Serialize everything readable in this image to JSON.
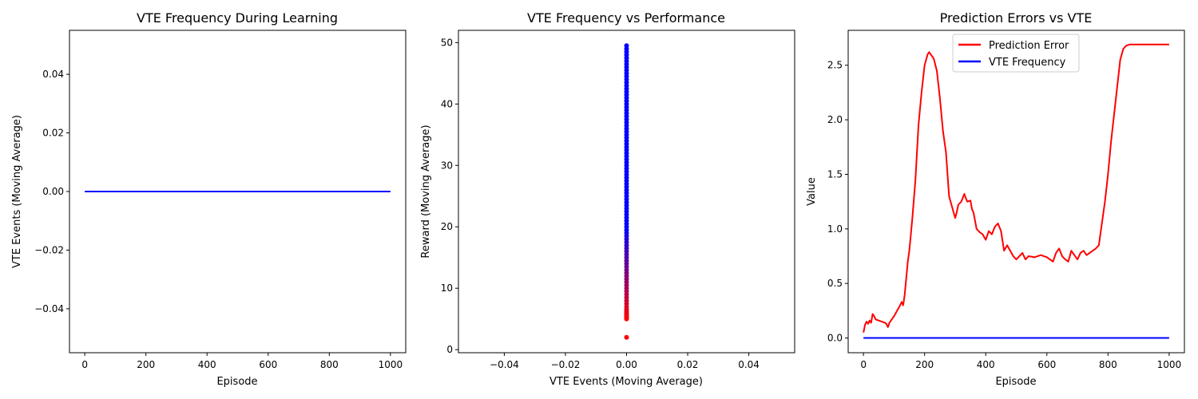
{
  "chart_data": [
    {
      "type": "line",
      "title": "VTE Frequency During Learning",
      "xlabel": "Episode",
      "ylabel": "VTE Events (Moving Average)",
      "xlim": [
        -50,
        1050
      ],
      "ylim": [
        -0.055,
        0.055
      ],
      "xticks": [
        0,
        200,
        400,
        600,
        800,
        1000
      ],
      "yticks": [
        -0.04,
        -0.02,
        0.0,
        0.02,
        0.04
      ],
      "xtick_labels": [
        "0",
        "200",
        "400",
        "600",
        "800",
        "1000"
      ],
      "ytick_labels": [
        "−0.04",
        "−0.02",
        "0.00",
        "0.02",
        "0.04"
      ],
      "legend": null,
      "series": [
        {
          "color": "#0000ff",
          "x": [
            0,
            1000
          ],
          "y": [
            0,
            0
          ]
        }
      ]
    },
    {
      "type": "scatter",
      "title": "VTE Frequency vs Performance",
      "xlabel": "VTE Events (Moving Average)",
      "ylabel": "Reward (Moving Average)",
      "xlim": [
        -0.055,
        0.055
      ],
      "ylim": [
        -0.5,
        52
      ],
      "xticks": [
        -0.04,
        -0.02,
        0.0,
        0.02,
        0.04
      ],
      "yticks": [
        0,
        10,
        20,
        30,
        40,
        50
      ],
      "xtick_labels": [
        "−0.04",
        "−0.02",
        "0.00",
        "0.02",
        "0.04"
      ],
      "ytick_labels": [
        "0",
        "10",
        "20",
        "30",
        "40",
        "50"
      ],
      "color_gradient": {
        "low": "#ff0000",
        "high": "#0000ff"
      },
      "points_x": 0,
      "points_y": [
        2.0,
        5.0,
        5.2,
        5.4,
        5.6,
        5.8,
        6.0,
        6.3,
        6.6,
        7.0,
        7.5,
        8.0,
        8.5,
        9.0,
        9.5,
        10.0,
        10.5,
        11.0,
        11.5,
        12.0,
        12.5,
        13.0,
        13.5,
        14.0,
        14.5,
        15.0,
        15.5,
        16.0,
        16.5,
        17.0,
        17.5,
        18.0,
        18.5,
        19.0,
        19.5,
        20.0,
        20.5,
        21.0,
        21.5,
        22.0,
        22.5,
        23.0,
        23.5,
        24.0,
        24.5,
        25.0,
        25.5,
        26.0,
        26.5,
        27.0,
        27.5,
        28.0,
        28.5,
        29.0,
        29.5,
        30.0,
        30.5,
        31.0,
        31.5,
        32.0,
        32.5,
        33.0,
        33.5,
        34.0,
        34.5,
        35.0,
        35.5,
        36.0,
        36.5,
        37.0,
        37.5,
        38.0,
        38.5,
        39.0,
        39.5,
        40.0,
        40.5,
        41.0,
        41.5,
        42.0,
        42.5,
        43.0,
        43.5,
        44.0,
        44.5,
        45.0,
        45.5,
        46.0,
        46.5,
        47.0,
        47.5,
        48.0,
        48.5,
        49.0,
        49.5
      ]
    },
    {
      "type": "line",
      "title": "Prediction Errors vs VTE",
      "xlabel": "Episode",
      "ylabel": "Value",
      "xlim": [
        -50,
        1050
      ],
      "ylim": [
        -0.135,
        2.82
      ],
      "xticks": [
        0,
        200,
        400,
        600,
        800,
        1000
      ],
      "yticks": [
        0.0,
        0.5,
        1.0,
        1.5,
        2.0,
        2.5
      ],
      "xtick_labels": [
        "0",
        "200",
        "400",
        "600",
        "800",
        "1000"
      ],
      "ytick_labels": [
        "0.0",
        "0.5",
        "1.0",
        "1.5",
        "2.0",
        "2.5"
      ],
      "legend_position": "top-center",
      "series": [
        {
          "name": "Prediction Error",
          "color": "#ff0000",
          "x": [
            0,
            5,
            10,
            15,
            20,
            25,
            30,
            35,
            40,
            50,
            60,
            70,
            75,
            80,
            85,
            90,
            100,
            110,
            120,
            125,
            130,
            135,
            140,
            145,
            150,
            160,
            170,
            180,
            190,
            200,
            205,
            210,
            215,
            220,
            225,
            230,
            240,
            250,
            260,
            270,
            275,
            280,
            285,
            290,
            300,
            305,
            310,
            320,
            330,
            335,
            340,
            350,
            355,
            360,
            370,
            380,
            390,
            400,
            410,
            420,
            430,
            440,
            450,
            460,
            470,
            480,
            490,
            500,
            510,
            520,
            530,
            540,
            560,
            580,
            600,
            610,
            620,
            630,
            640,
            650,
            660,
            670,
            680,
            690,
            700,
            710,
            720,
            730,
            740,
            750,
            760,
            770,
            780,
            790,
            800,
            810,
            820,
            830,
            840,
            850,
            860,
            870,
            880,
            900,
            950,
            1000
          ],
          "y": [
            0.05,
            0.12,
            0.15,
            0.13,
            0.16,
            0.14,
            0.22,
            0.2,
            0.17,
            0.16,
            0.15,
            0.14,
            0.13,
            0.1,
            0.14,
            0.16,
            0.2,
            0.25,
            0.3,
            0.33,
            0.3,
            0.4,
            0.55,
            0.7,
            0.8,
            1.1,
            1.45,
            1.95,
            2.25,
            2.5,
            2.55,
            2.6,
            2.62,
            2.6,
            2.58,
            2.56,
            2.45,
            2.2,
            1.9,
            1.7,
            1.5,
            1.3,
            1.25,
            1.2,
            1.1,
            1.15,
            1.22,
            1.25,
            1.32,
            1.28,
            1.25,
            1.26,
            1.18,
            1.15,
            1.0,
            0.97,
            0.95,
            0.9,
            0.98,
            0.95,
            1.02,
            1.05,
            0.98,
            0.8,
            0.85,
            0.8,
            0.75,
            0.72,
            0.75,
            0.78,
            0.72,
            0.75,
            0.74,
            0.76,
            0.74,
            0.72,
            0.7,
            0.78,
            0.82,
            0.75,
            0.72,
            0.7,
            0.8,
            0.76,
            0.72,
            0.78,
            0.8,
            0.76,
            0.78,
            0.8,
            0.82,
            0.85,
            1.05,
            1.25,
            1.5,
            1.8,
            2.05,
            2.3,
            2.55,
            2.65,
            2.68,
            2.69,
            2.69,
            2.69,
            2.69,
            2.69
          ]
        },
        {
          "name": "VTE Frequency",
          "color": "#0000ff",
          "x": [
            0,
            1000
          ],
          "y": [
            0,
            0
          ]
        }
      ]
    }
  ]
}
